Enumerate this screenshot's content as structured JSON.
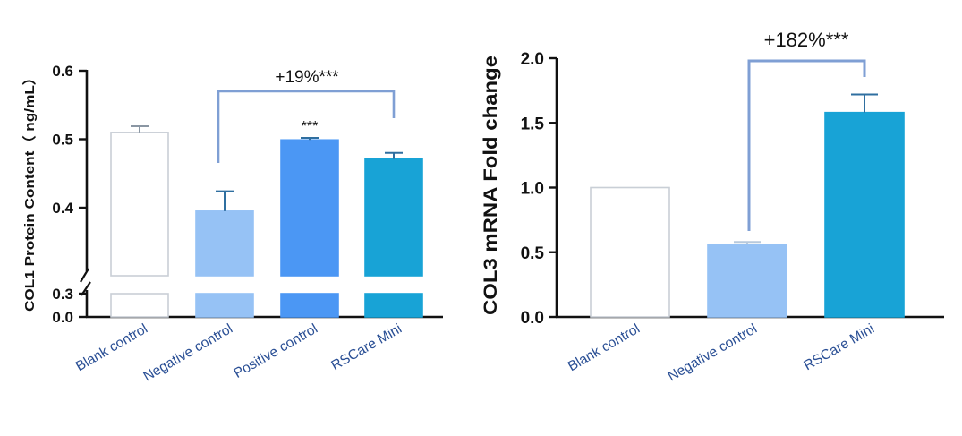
{
  "chart_data": [
    {
      "type": "bar",
      "ylabel": "COL1 Protein Content（ ng/mL）",
      "categories": [
        "Blank control",
        "Negative control",
        "Positive control",
        "RSCare Mini"
      ],
      "values": [
        0.51,
        0.395,
        0.499,
        0.471
      ],
      "errors": [
        0.009,
        0.029,
        0.003,
        0.009
      ],
      "colors": [
        "#ffffff",
        "#96c2f5",
        "#4b97f4",
        "#18a3d6"
      ],
      "yaxis_break": [
        0.3,
        0.35
      ],
      "yticks": [
        "0.0",
        "0.3",
        "0.4",
        "0.5",
        "0.6"
      ],
      "bar_labels": [
        "",
        "",
        "***",
        ""
      ],
      "bracket": {
        "from": "Negative control",
        "to": "RSCare Mini",
        "label": "+19%***"
      },
      "grid": false
    },
    {
      "type": "bar",
      "ylabel": "COL3 mRNA Fold change",
      "categories": [
        "Blank control",
        "Negative control",
        "RSCare Mini"
      ],
      "values": [
        1.0,
        0.56,
        1.58
      ],
      "errors": [
        0.0,
        0.02,
        0.14
      ],
      "colors": [
        "#ffffff",
        "#96c2f5",
        "#18a3d6"
      ],
      "ylim": [
        0,
        2.0
      ],
      "yticks": [
        "0.0",
        "0.5",
        "1.0",
        "1.5",
        "2.0"
      ],
      "bracket": {
        "from": "Negative control",
        "to": "RSCare Mini",
        "label": "+182%***"
      },
      "grid": false
    }
  ]
}
